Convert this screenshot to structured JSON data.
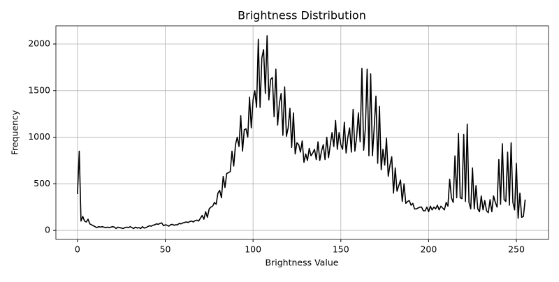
{
  "chart_data": {
    "type": "line",
    "title": "Brightness Distribution",
    "x_label": "Brightness Value",
    "y_label": "Frequency",
    "x": [
      0,
      1,
      2,
      3,
      4,
      5,
      6,
      7,
      8,
      9,
      10,
      11,
      12,
      13,
      14,
      15,
      16,
      17,
      18,
      19,
      20,
      21,
      22,
      23,
      24,
      25,
      26,
      27,
      28,
      29,
      30,
      31,
      32,
      33,
      34,
      35,
      36,
      37,
      38,
      39,
      40,
      41,
      42,
      43,
      44,
      45,
      46,
      47,
      48,
      49,
      50,
      51,
      52,
      53,
      54,
      55,
      56,
      57,
      58,
      59,
      60,
      61,
      62,
      63,
      64,
      65,
      66,
      67,
      68,
      69,
      70,
      71,
      72,
      73,
      74,
      75,
      76,
      77,
      78,
      79,
      80,
      81,
      82,
      83,
      84,
      85,
      86,
      87,
      88,
      89,
      90,
      91,
      92,
      93,
      94,
      95,
      96,
      97,
      98,
      99,
      100,
      101,
      102,
      103,
      104,
      105,
      106,
      107,
      108,
      109,
      110,
      111,
      112,
      113,
      114,
      115,
      116,
      117,
      118,
      119,
      120,
      121,
      122,
      123,
      124,
      125,
      126,
      127,
      128,
      129,
      130,
      131,
      132,
      133,
      134,
      135,
      136,
      137,
      138,
      139,
      140,
      141,
      142,
      143,
      144,
      145,
      146,
      147,
      148,
      149,
      150,
      151,
      152,
      153,
      154,
      155,
      156,
      157,
      158,
      159,
      160,
      161,
      162,
      163,
      164,
      165,
      166,
      167,
      168,
      169,
      170,
      171,
      172,
      173,
      174,
      175,
      176,
      177,
      178,
      179,
      180,
      181,
      182,
      183,
      184,
      185,
      186,
      187,
      188,
      189,
      190,
      191,
      192,
      193,
      194,
      195,
      196,
      197,
      198,
      199,
      200,
      201,
      202,
      203,
      204,
      205,
      206,
      207,
      208,
      209,
      210,
      211,
      212,
      213,
      214,
      215,
      216,
      217,
      218,
      219,
      220,
      221,
      222,
      223,
      224,
      225,
      226,
      227,
      228,
      229,
      230,
      231,
      232,
      233,
      234,
      235,
      236,
      237,
      238,
      239,
      240,
      241,
      242,
      243,
      244,
      245,
      246,
      247,
      248,
      249,
      250,
      251,
      252,
      253,
      254,
      255
    ],
    "values": [
      390,
      850,
      100,
      150,
      100,
      90,
      120,
      70,
      60,
      50,
      40,
      30,
      40,
      35,
      40,
      35,
      30,
      35,
      30,
      35,
      40,
      35,
      20,
      35,
      30,
      25,
      20,
      30,
      35,
      30,
      40,
      30,
      20,
      35,
      25,
      30,
      20,
      40,
      25,
      30,
      40,
      50,
      45,
      55,
      60,
      70,
      65,
      75,
      80,
      50,
      60,
      55,
      45,
      60,
      65,
      55,
      60,
      60,
      75,
      70,
      80,
      85,
      90,
      85,
      95,
      100,
      90,
      105,
      110,
      100,
      130,
      160,
      120,
      200,
      140,
      230,
      250,
      260,
      300,
      280,
      400,
      430,
      350,
      580,
      460,
      610,
      620,
      630,
      850,
      690,
      920,
      1000,
      900,
      1230,
      850,
      1080,
      1090,
      1000,
      1430,
      1100,
      1400,
      1500,
      1320,
      2050,
      1320,
      1850,
      1940,
      1470,
      2090,
      1400,
      1620,
      1640,
      1220,
      1730,
      1130,
      1360,
      1470,
      1020,
      1540,
      1010,
      1100,
      1310,
      890,
      1260,
      820,
      940,
      920,
      840,
      960,
      730,
      820,
      750,
      880,
      800,
      830,
      870,
      760,
      950,
      750,
      850,
      920,
      760,
      1000,
      780,
      920,
      1050,
      900,
      1180,
      870,
      1050,
      920,
      870,
      1160,
      830,
      1000,
      1100,
      840,
      1300,
      850,
      1000,
      1260,
      950,
      1740,
      860,
      1100,
      1730,
      800,
      1680,
      800,
      1100,
      1440,
      720,
      1330,
      650,
      870,
      700,
      990,
      580,
      700,
      790,
      400,
      670,
      420,
      480,
      540,
      310,
      500,
      290,
      310,
      320,
      270,
      290,
      230,
      230,
      240,
      250,
      250,
      210,
      210,
      250,
      200,
      260,
      220,
      250,
      230,
      270,
      220,
      260,
      240,
      220,
      300,
      260,
      550,
      350,
      300,
      800,
      350,
      1040,
      350,
      340,
      1030,
      310,
      1140,
      300,
      230,
      670,
      230,
      480,
      230,
      200,
      370,
      220,
      320,
      210,
      190,
      330,
      200,
      370,
      300,
      250,
      760,
      280,
      930,
      330,
      310,
      840,
      270,
      940,
      300,
      220,
      720,
      130,
      400,
      140,
      150,
      330
    ],
    "color": "#000000",
    "xlim": [
      -12.3,
      268.3
    ],
    "ylim": [
      -97,
      2195
    ],
    "xticks": [
      0,
      50,
      100,
      150,
      200,
      250
    ],
    "yticks": [
      0,
      500,
      1000,
      1500,
      2000
    ],
    "grid": true
  }
}
